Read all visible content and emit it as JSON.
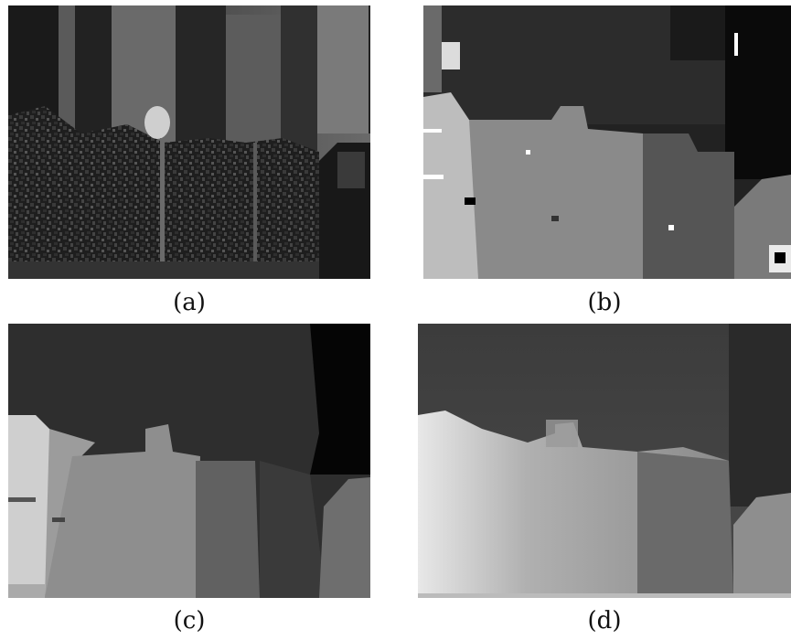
{
  "captions": {
    "a": "(a)",
    "b": "(b)",
    "c": "(c)",
    "d": "(d)"
  }
}
